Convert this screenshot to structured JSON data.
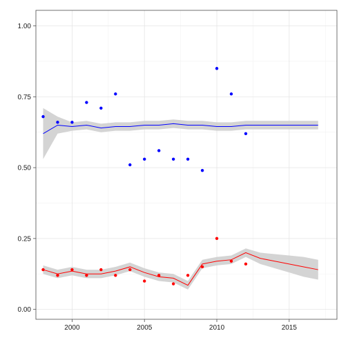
{
  "chart_data": {
    "type": "scatter",
    "xlim": [
      1997.5,
      2018.3
    ],
    "ylim": [
      -0.035,
      1.055
    ],
    "x_ticks": [
      2000,
      2005,
      2010,
      2015
    ],
    "y_ticks": [
      0.0,
      0.25,
      0.5,
      0.75,
      1.0
    ],
    "x_tick_labels": [
      "2000",
      "2005",
      "2010",
      "2015"
    ],
    "y_tick_labels": [
      "0.00",
      "0.25",
      "0.50",
      "0.75",
      "1.00"
    ],
    "grid": true,
    "series": [
      {
        "color": "#0000ff",
        "points": [
          {
            "x": 1998,
            "y": 0.68
          },
          {
            "x": 1999,
            "y": 0.66
          },
          {
            "x": 2000,
            "y": 0.66
          },
          {
            "x": 2001,
            "y": 0.73
          },
          {
            "x": 2002,
            "y": 0.71
          },
          {
            "x": 2003,
            "y": 0.76
          },
          {
            "x": 2004,
            "y": 0.51
          },
          {
            "x": 2005,
            "y": 0.53
          },
          {
            "x": 2006,
            "y": 0.56
          },
          {
            "x": 2007,
            "y": 0.53
          },
          {
            "x": 2008,
            "y": 0.53
          },
          {
            "x": 2009,
            "y": 0.49
          },
          {
            "x": 2010,
            "y": 0.85
          },
          {
            "x": 2011,
            "y": 0.76
          },
          {
            "x": 2012,
            "y": 0.62
          }
        ],
        "trend": [
          {
            "x": 1998,
            "y": 0.62,
            "lo": 0.53,
            "hi": 0.71
          },
          {
            "x": 1999,
            "y": 0.65,
            "lo": 0.62,
            "hi": 0.68
          },
          {
            "x": 2000,
            "y": 0.645,
            "lo": 0.63,
            "hi": 0.66
          },
          {
            "x": 2001,
            "y": 0.65,
            "lo": 0.635,
            "hi": 0.665
          },
          {
            "x": 2002,
            "y": 0.64,
            "lo": 0.625,
            "hi": 0.655
          },
          {
            "x": 2003,
            "y": 0.645,
            "lo": 0.63,
            "hi": 0.66
          },
          {
            "x": 2004,
            "y": 0.645,
            "lo": 0.63,
            "hi": 0.66
          },
          {
            "x": 2005,
            "y": 0.65,
            "lo": 0.635,
            "hi": 0.665
          },
          {
            "x": 2006,
            "y": 0.65,
            "lo": 0.635,
            "hi": 0.665
          },
          {
            "x": 2007,
            "y": 0.655,
            "lo": 0.64,
            "hi": 0.67
          },
          {
            "x": 2008,
            "y": 0.65,
            "lo": 0.635,
            "hi": 0.665
          },
          {
            "x": 2009,
            "y": 0.65,
            "lo": 0.635,
            "hi": 0.665
          },
          {
            "x": 2010,
            "y": 0.645,
            "lo": 0.63,
            "hi": 0.66
          },
          {
            "x": 2011,
            "y": 0.645,
            "lo": 0.63,
            "hi": 0.66
          },
          {
            "x": 2012,
            "y": 0.65,
            "lo": 0.635,
            "hi": 0.665
          },
          {
            "x": 2013,
            "y": 0.65,
            "lo": 0.635,
            "hi": 0.665
          },
          {
            "x": 2014,
            "y": 0.65,
            "lo": 0.635,
            "hi": 0.665
          },
          {
            "x": 2015,
            "y": 0.65,
            "lo": 0.635,
            "hi": 0.665
          },
          {
            "x": 2016,
            "y": 0.65,
            "lo": 0.635,
            "hi": 0.665
          },
          {
            "x": 2017,
            "y": 0.65,
            "lo": 0.635,
            "hi": 0.665
          }
        ]
      },
      {
        "color": "#ff0000",
        "points": [
          {
            "x": 1998,
            "y": 0.14
          },
          {
            "x": 1999,
            "y": 0.12
          },
          {
            "x": 2000,
            "y": 0.14
          },
          {
            "x": 2001,
            "y": 0.12
          },
          {
            "x": 2002,
            "y": 0.14
          },
          {
            "x": 2003,
            "y": 0.12
          },
          {
            "x": 2004,
            "y": 0.14
          },
          {
            "x": 2005,
            "y": 0.1
          },
          {
            "x": 2006,
            "y": 0.12
          },
          {
            "x": 2007,
            "y": 0.09
          },
          {
            "x": 2008,
            "y": 0.12
          },
          {
            "x": 2009,
            "y": 0.15
          },
          {
            "x": 2010,
            "y": 0.25
          },
          {
            "x": 2011,
            "y": 0.17
          },
          {
            "x": 2012,
            "y": 0.16
          }
        ],
        "trend": [
          {
            "x": 1998,
            "y": 0.14,
            "lo": 0.125,
            "hi": 0.155
          },
          {
            "x": 1999,
            "y": 0.125,
            "lo": 0.11,
            "hi": 0.14
          },
          {
            "x": 2000,
            "y": 0.135,
            "lo": 0.12,
            "hi": 0.15
          },
          {
            "x": 2001,
            "y": 0.125,
            "lo": 0.11,
            "hi": 0.14
          },
          {
            "x": 2002,
            "y": 0.125,
            "lo": 0.11,
            "hi": 0.14
          },
          {
            "x": 2003,
            "y": 0.135,
            "lo": 0.12,
            "hi": 0.15
          },
          {
            "x": 2004,
            "y": 0.15,
            "lo": 0.135,
            "hi": 0.165
          },
          {
            "x": 2005,
            "y": 0.13,
            "lo": 0.115,
            "hi": 0.145
          },
          {
            "x": 2006,
            "y": 0.115,
            "lo": 0.1,
            "hi": 0.13
          },
          {
            "x": 2007,
            "y": 0.11,
            "lo": 0.095,
            "hi": 0.125
          },
          {
            "x": 2008,
            "y": 0.085,
            "lo": 0.07,
            "hi": 0.1
          },
          {
            "x": 2009,
            "y": 0.16,
            "lo": 0.145,
            "hi": 0.175
          },
          {
            "x": 2010,
            "y": 0.17,
            "lo": 0.155,
            "hi": 0.185
          },
          {
            "x": 2011,
            "y": 0.175,
            "lo": 0.16,
            "hi": 0.19
          },
          {
            "x": 2012,
            "y": 0.2,
            "lo": 0.185,
            "hi": 0.215
          },
          {
            "x": 2013,
            "y": 0.18,
            "lo": 0.16,
            "hi": 0.2
          },
          {
            "x": 2014,
            "y": 0.17,
            "lo": 0.145,
            "hi": 0.195
          },
          {
            "x": 2015,
            "y": 0.16,
            "lo": 0.13,
            "hi": 0.19
          },
          {
            "x": 2016,
            "y": 0.15,
            "lo": 0.115,
            "hi": 0.185
          },
          {
            "x": 2017,
            "y": 0.14,
            "lo": 0.105,
            "hi": 0.175
          }
        ]
      }
    ]
  }
}
